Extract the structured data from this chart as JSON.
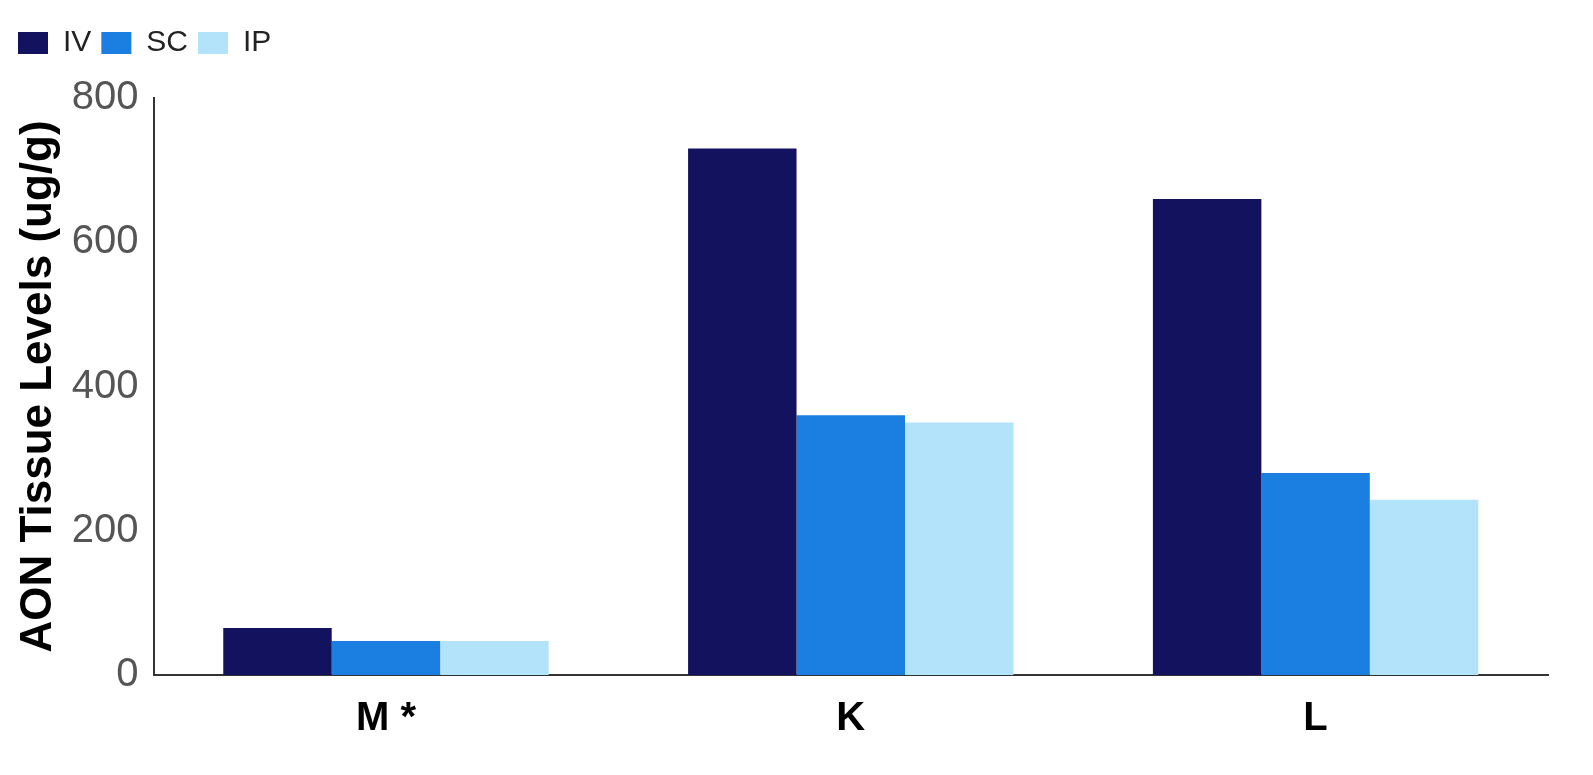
{
  "chart_data": {
    "type": "bar",
    "ylabel": "AON Tissue Levels (ug/g)",
    "categories": [
      "M *",
      "K",
      "L"
    ],
    "series": [
      {
        "name": "IV",
        "color": "#13125f",
        "values": [
          65,
          730,
          660
        ]
      },
      {
        "name": "SC",
        "color": "#1a7fe0",
        "values": [
          47,
          360,
          280
        ]
      },
      {
        "name": "IP",
        "color": "#b3e3fa",
        "values": [
          47,
          350,
          243
        ]
      }
    ],
    "ylim": [
      0,
      800
    ],
    "yticks": [
      0,
      200,
      400,
      600,
      800
    ],
    "grid": false,
    "legend": "top left"
  }
}
